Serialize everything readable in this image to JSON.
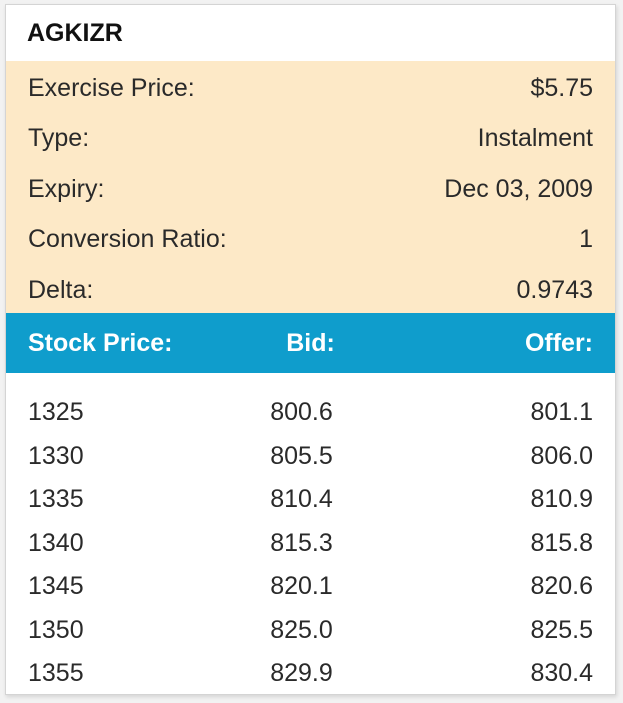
{
  "title": "AGKIZR",
  "info": [
    {
      "label": "Exercise Price:",
      "value": "$5.75"
    },
    {
      "label": "Type:",
      "value": "Instalment"
    },
    {
      "label": "Expiry:",
      "value": "Dec 03, 2009"
    },
    {
      "label": "Conversion Ratio:",
      "value": "1"
    },
    {
      "label": "Delta:",
      "value": "0.9743"
    }
  ],
  "table": {
    "headers": [
      "Stock Price:",
      "Bid:",
      "Offer:"
    ],
    "rows": [
      [
        "1325",
        "800.6",
        "801.1"
      ],
      [
        "1330",
        "805.5",
        "806.0"
      ],
      [
        "1335",
        "810.4",
        "810.9"
      ],
      [
        "1340",
        "815.3",
        "815.8"
      ],
      [
        "1345",
        "820.1",
        "820.6"
      ],
      [
        "1350",
        "825.0",
        "825.5"
      ],
      [
        "1355",
        "829.9",
        "830.4"
      ]
    ]
  },
  "colors": {
    "info_background": "#fde9c7",
    "header_background": "#0f9dcc"
  }
}
